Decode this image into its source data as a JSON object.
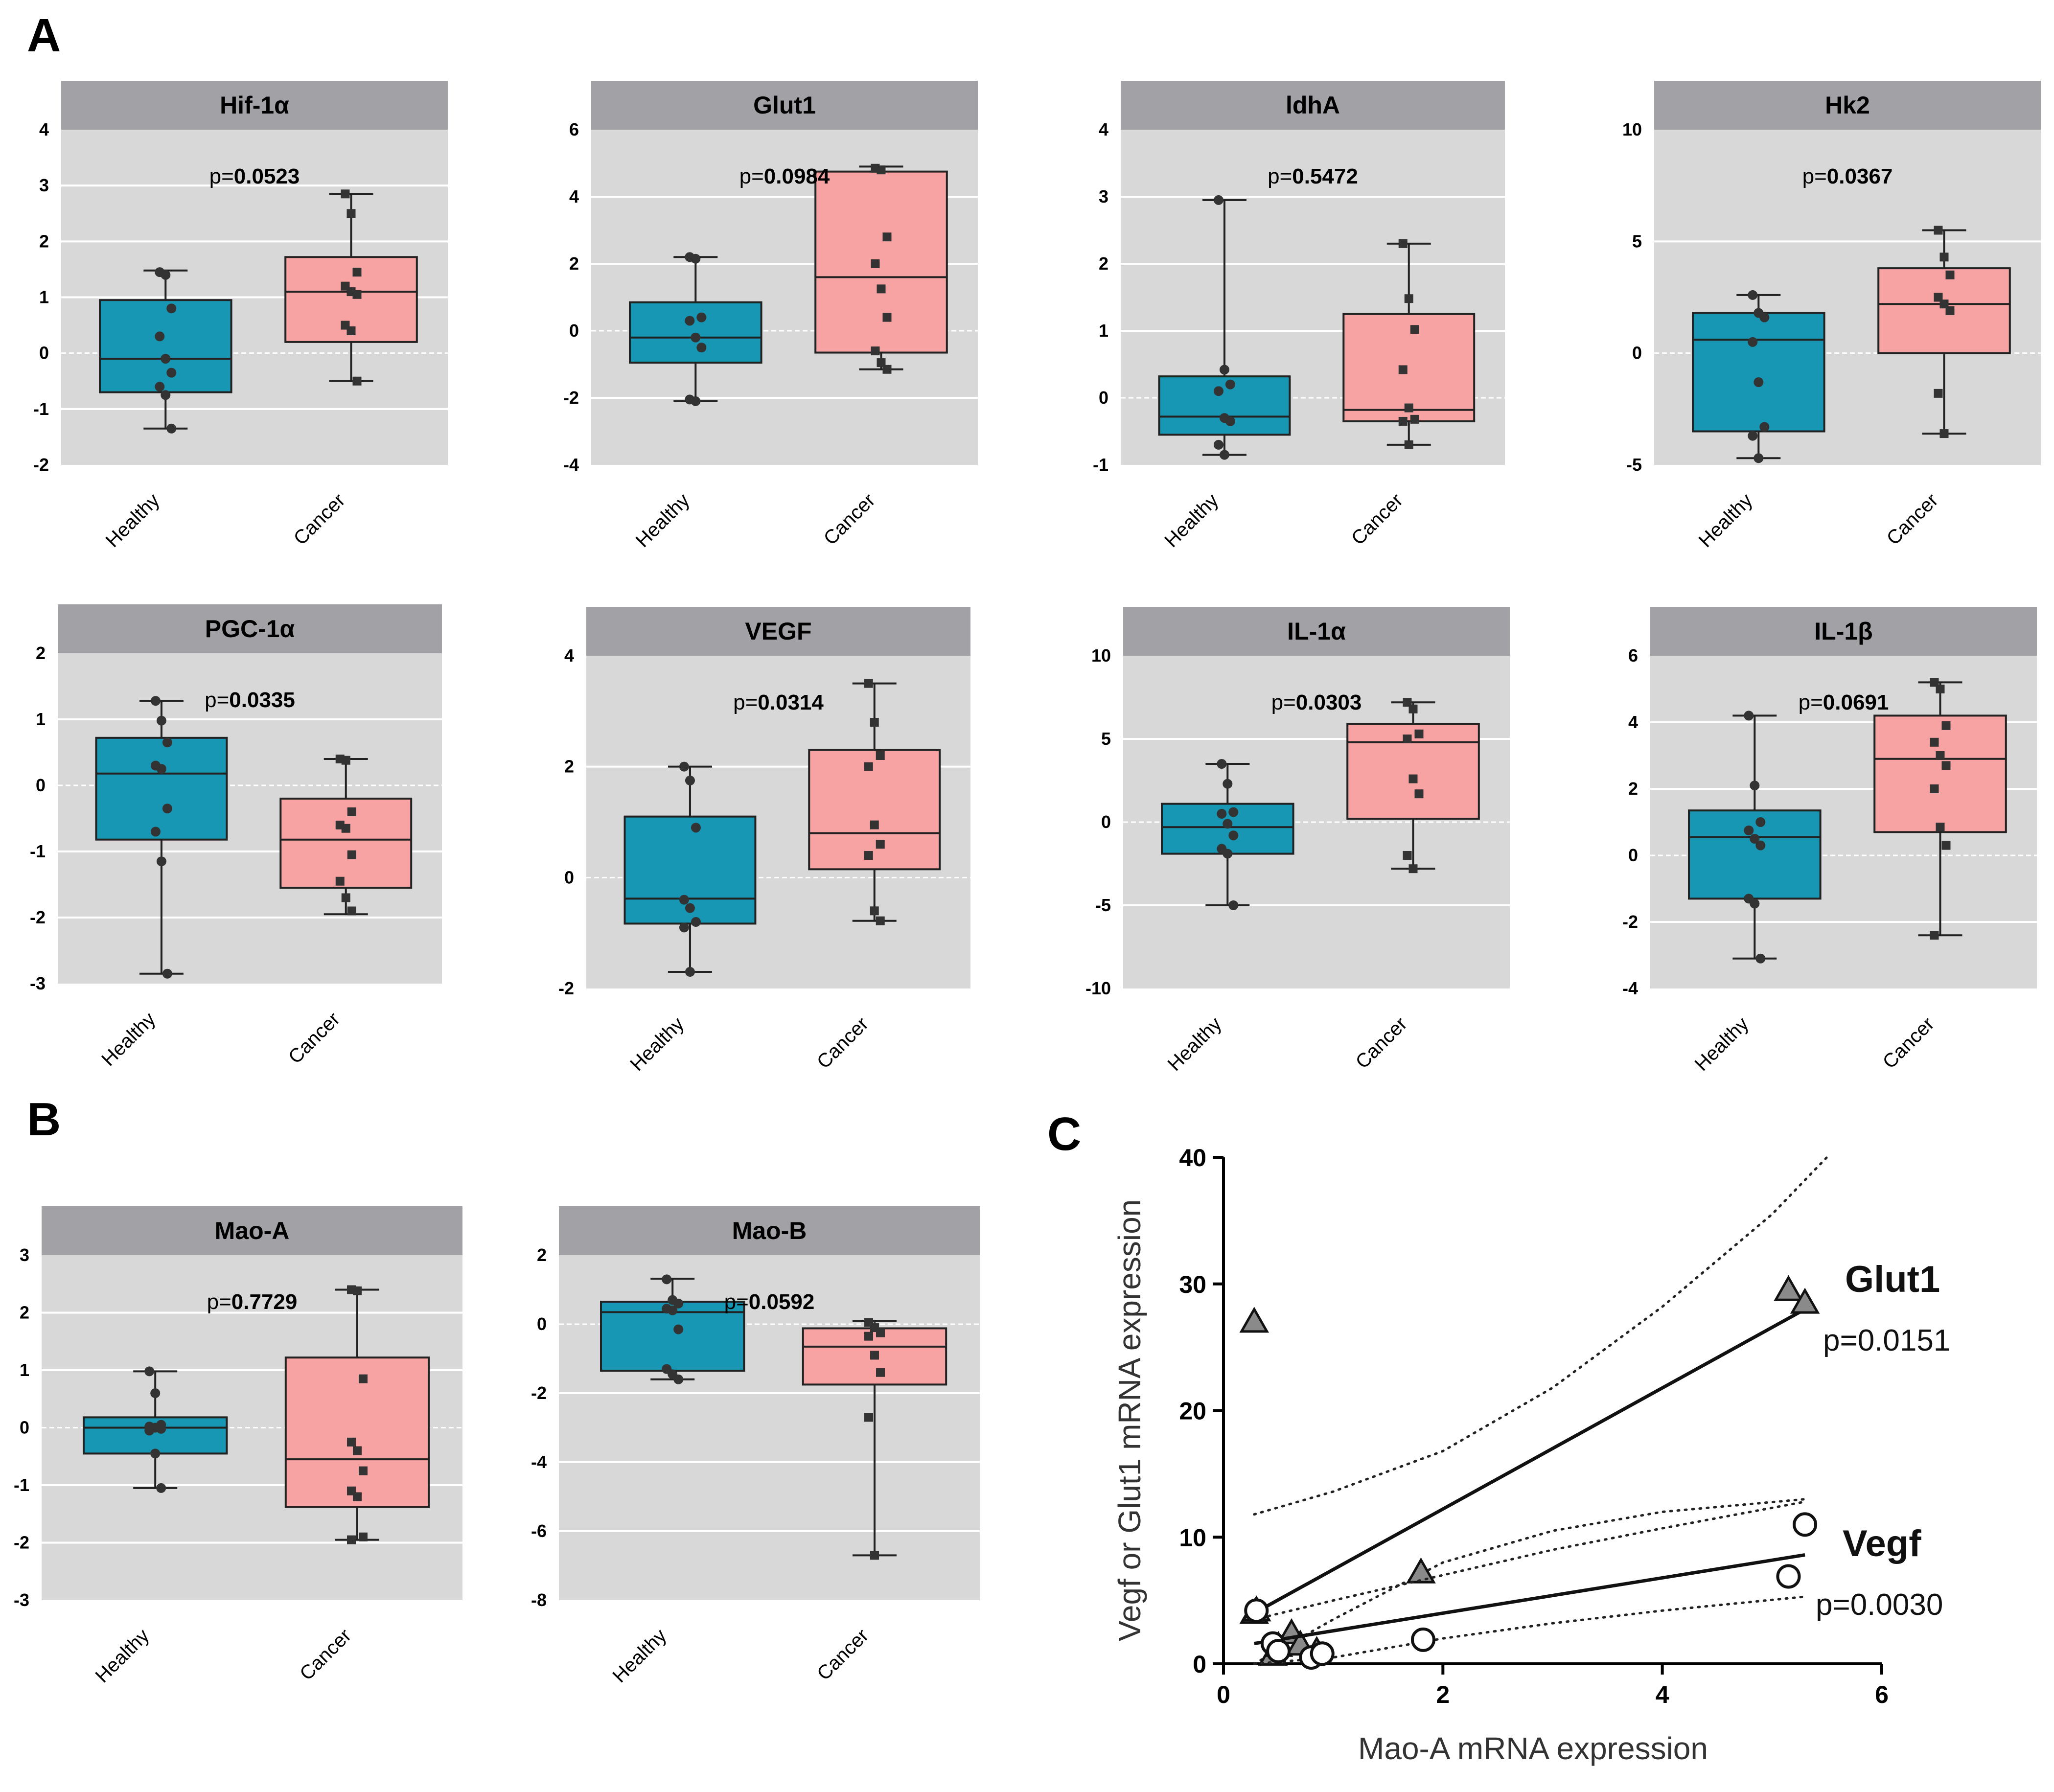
{
  "panel_labels": [
    "A",
    "B",
    "C"
  ],
  "colors": {
    "healthy": "#1797b4",
    "cancer": "#f7a3a4",
    "header": "#a2a1a6",
    "plot_bg": "#d8d8d8",
    "marker": "#333333"
  },
  "chart_data": [
    {
      "type": "box",
      "title": "Hif-1α",
      "p_prefix": "p=",
      "p_value": "0.0523",
      "categories": [
        "Healthy",
        "Cancer"
      ],
      "ylim": [
        -2,
        4
      ],
      "yticks": [
        "-2",
        "-1",
        "0",
        "1",
        "2",
        "3",
        "4"
      ],
      "healthy": {
        "min": -1.35,
        "q1": -0.7,
        "median": -0.1,
        "q3": 0.95,
        "max": 1.48,
        "points": [
          1.45,
          1.4,
          0.8,
          0.3,
          -0.1,
          -0.35,
          -0.6,
          -0.75,
          -1.35
        ]
      },
      "cancer": {
        "min": -0.5,
        "q1": 0.2,
        "median": 1.1,
        "q3": 1.72,
        "max": 2.85,
        "points": [
          2.85,
          2.5,
          1.45,
          1.2,
          1.1,
          1.05,
          0.5,
          0.4,
          -0.5
        ]
      }
    },
    {
      "type": "box",
      "title": "Glut1",
      "p_prefix": "p=",
      "p_value": "0.0984",
      "categories": [
        "Healthy",
        "Cancer"
      ],
      "ylim": [
        -4,
        6
      ],
      "yticks": [
        "-4",
        "-2",
        "0",
        "2",
        "4",
        "6"
      ],
      "healthy": {
        "min": -2.1,
        "q1": -0.95,
        "median": -0.2,
        "q3": 0.85,
        "max": 2.2,
        "points": [
          2.2,
          2.15,
          0.4,
          0.3,
          -0.2,
          -0.5,
          -2.05,
          -2.1
        ]
      },
      "cancer": {
        "min": -1.15,
        "q1": -0.65,
        "median": 1.6,
        "q3": 4.75,
        "max": 4.9,
        "points": [
          4.85,
          4.8,
          2.8,
          2.0,
          1.25,
          0.4,
          -0.6,
          -0.95,
          -1.15
        ]
      }
    },
    {
      "type": "box",
      "title": "ldhA",
      "p_prefix": "p=",
      "p_value": "0.5472",
      "categories": [
        "Healthy",
        "Cancer"
      ],
      "ylim": [
        -1,
        4
      ],
      "yticks": [
        "-1",
        "0",
        "1",
        "2",
        "3",
        "4"
      ],
      "healthy": {
        "min": -0.85,
        "q1": -0.55,
        "median": -0.28,
        "q3": 0.32,
        "max": 2.95,
        "points": [
          2.95,
          0.42,
          0.2,
          0.1,
          -0.3,
          -0.35,
          -0.7,
          -0.85
        ]
      },
      "cancer": {
        "min": -0.7,
        "q1": -0.35,
        "median": -0.18,
        "q3": 1.25,
        "max": 2.3,
        "points": [
          2.3,
          1.48,
          1.02,
          0.42,
          -0.15,
          -0.32,
          -0.35,
          -0.7
        ]
      }
    },
    {
      "type": "box",
      "title": "Hk2",
      "p_prefix": "p=",
      "p_value": "0.0367",
      "categories": [
        "Healthy",
        "Cancer"
      ],
      "ylim": [
        -5,
        10
      ],
      "yticks": [
        "-5",
        "0",
        "5",
        "10"
      ],
      "healthy": {
        "min": -4.7,
        "q1": -3.5,
        "median": 0.6,
        "q3": 1.8,
        "max": 2.6,
        "points": [
          2.6,
          1.8,
          1.6,
          0.5,
          -1.3,
          -3.3,
          -3.7,
          -4.7
        ]
      },
      "cancer": {
        "min": -3.6,
        "q1": 0.0,
        "median": 2.2,
        "q3": 3.8,
        "max": 5.5,
        "points": [
          5.5,
          4.3,
          3.5,
          2.5,
          2.2,
          1.9,
          -1.8,
          -3.6
        ]
      }
    },
    {
      "type": "box",
      "title": "PGC-1α",
      "p_prefix": "p=",
      "p_value": "0.0335",
      "categories": [
        "Healthy",
        "Cancer"
      ],
      "ylim": [
        -3,
        2
      ],
      "yticks": [
        "-3",
        "-2",
        "-1",
        "0",
        "1",
        "2"
      ],
      "healthy": {
        "min": -2.85,
        "q1": -0.82,
        "median": 0.18,
        "q3": 0.72,
        "max": 1.28,
        "points": [
          1.28,
          0.98,
          0.65,
          0.3,
          0.25,
          -0.35,
          -0.7,
          -1.15,
          -2.85
        ]
      },
      "cancer": {
        "min": -1.95,
        "q1": -1.55,
        "median": -0.82,
        "q3": -0.2,
        "max": 0.4,
        "points": [
          0.4,
          0.38,
          -0.4,
          -0.6,
          -0.65,
          -1.05,
          -1.45,
          -1.7,
          -1.9
        ]
      }
    },
    {
      "type": "box",
      "title": "VEGF",
      "p_prefix": "p=",
      "p_value": "0.0314",
      "categories": [
        "Healthy",
        "Cancer"
      ],
      "ylim": [
        -2,
        4
      ],
      "yticks": [
        "-2",
        "0",
        "2",
        "4"
      ],
      "healthy": {
        "min": -1.7,
        "q1": -0.83,
        "median": -0.38,
        "q3": 1.1,
        "max": 2.0,
        "points": [
          2.0,
          1.75,
          0.9,
          -0.4,
          -0.55,
          -0.8,
          -0.9,
          -1.7
        ]
      },
      "cancer": {
        "min": -0.78,
        "q1": 0.15,
        "median": 0.8,
        "q3": 2.3,
        "max": 3.5,
        "points": [
          3.5,
          2.8,
          2.2,
          2.0,
          0.95,
          0.6,
          0.4,
          -0.6,
          -0.78
        ]
      }
    },
    {
      "type": "box",
      "title": "IL-1α",
      "p_prefix": "p=",
      "p_value": "0.0303",
      "categories": [
        "Healthy",
        "Cancer"
      ],
      "ylim": [
        -10,
        10
      ],
      "yticks": [
        "-10",
        "-5",
        "0",
        "5",
        "10"
      ],
      "healthy": {
        "min": -5.0,
        "q1": -1.9,
        "median": -0.3,
        "q3": 1.1,
        "max": 3.5,
        "points": [
          3.5,
          2.3,
          0.6,
          0.5,
          -0.1,
          -0.8,
          -1.6,
          -1.9,
          -5.0
        ]
      },
      "cancer": {
        "min": -2.8,
        "q1": 0.2,
        "median": 4.8,
        "q3": 5.9,
        "max": 7.2,
        "points": [
          7.2,
          6.8,
          5.3,
          5.0,
          2.6,
          1.7,
          -2.0,
          -2.8
        ]
      }
    },
    {
      "type": "box",
      "title": "IL-1β",
      "p_prefix": "p=",
      "p_value": "0.0691",
      "categories": [
        "Healthy",
        "Cancer"
      ],
      "ylim": [
        -4,
        6
      ],
      "yticks": [
        "-4",
        "-2",
        "0",
        "2",
        "4",
        "6"
      ],
      "healthy": {
        "min": -3.1,
        "q1": -1.3,
        "median": 0.55,
        "q3": 1.35,
        "max": 4.2,
        "points": [
          4.2,
          2.1,
          1.0,
          0.75,
          0.5,
          0.3,
          -1.3,
          -1.45,
          -3.1
        ]
      },
      "cancer": {
        "min": -2.4,
        "q1": 0.7,
        "median": 2.9,
        "q3": 4.2,
        "max": 5.2,
        "points": [
          5.2,
          5.0,
          3.9,
          3.4,
          3.0,
          2.7,
          2.0,
          0.85,
          0.3,
          -2.4
        ]
      }
    },
    {
      "type": "box",
      "title": "Mao-A",
      "p_prefix": "p=",
      "p_value": "0.7729",
      "categories": [
        "Healthy",
        "Cancer"
      ],
      "ylim": [
        -3,
        3
      ],
      "yticks": [
        "-3",
        "-2",
        "-1",
        "0",
        "1",
        "2",
        "3"
      ],
      "healthy": {
        "min": -1.05,
        "q1": -0.45,
        "median": 0.0,
        "q3": 0.18,
        "max": 0.98,
        "points": [
          0.98,
          0.6,
          0.05,
          0.02,
          0.0,
          -0.02,
          -0.05,
          -0.45,
          -1.05
        ]
      },
      "cancer": {
        "min": -1.95,
        "q1": -1.38,
        "median": -0.55,
        "q3": 1.22,
        "max": 2.4,
        "points": [
          2.4,
          2.38,
          0.85,
          -0.25,
          -0.4,
          -0.75,
          -1.1,
          -1.2,
          -1.9,
          -1.95
        ]
      }
    },
    {
      "type": "box",
      "title": "Mao-B",
      "p_prefix": "p=",
      "p_value": "0.0592",
      "categories": [
        "Healthy",
        "Cancer"
      ],
      "ylim": [
        -8,
        2
      ],
      "yticks": [
        "-8",
        "-6",
        "-4",
        "-2",
        "0",
        "2"
      ],
      "healthy": {
        "min": -1.6,
        "q1": -1.35,
        "median": 0.35,
        "q3": 0.65,
        "max": 1.32,
        "points": [
          1.3,
          0.7,
          0.6,
          0.45,
          0.4,
          -0.15,
          -1.3,
          -1.45,
          -1.6
        ]
      },
      "cancer": {
        "min": -6.7,
        "q1": -1.75,
        "median": -0.65,
        "q3": -0.12,
        "max": 0.1,
        "points": [
          0.05,
          -0.1,
          -0.25,
          -0.35,
          -0.9,
          -1.4,
          -2.7,
          -6.7
        ]
      }
    },
    {
      "type": "scatter",
      "xlabel": "Mao-A mRNA expression",
      "ylabel": "Vegf or Glut1 mRNA expression",
      "xlim": [
        0,
        6
      ],
      "ylim": [
        0,
        40
      ],
      "xticks": [
        "0",
        "2",
        "4",
        "6"
      ],
      "yticks": [
        "0",
        "10",
        "20",
        "30",
        "40"
      ],
      "series": [
        {
          "name": "Glut1",
          "p_text": "p=0.0151",
          "marker": "triangle",
          "x": [
            0.28,
            0.28,
            0.3,
            0.45,
            0.5,
            0.62,
            0.7,
            0.85,
            1.8,
            5.15,
            5.3
          ],
          "y": [
            27.0,
            4.0,
            4.2,
            0.7,
            1.4,
            2.4,
            1.5,
            1.0,
            7.2,
            29.5,
            28.5
          ],
          "fit": [
            [
              0.28,
              4.0
            ],
            [
              5.3,
              28.0
            ]
          ],
          "band_upper": [
            [
              0.28,
              11.8
            ],
            [
              1.0,
              13.6
            ],
            [
              2.0,
              16.8
            ],
            [
              3.0,
              21.8
            ],
            [
              4.0,
              28.2
            ],
            [
              5.0,
              35.5
            ],
            [
              5.5,
              40.0
            ]
          ],
          "band_lower": [
            [
              0.28,
              -3.0
            ],
            [
              1.0,
              3.5
            ],
            [
              2.0,
              8.0
            ],
            [
              3.0,
              10.5
            ],
            [
              4.0,
              12.0
            ],
            [
              5.3,
              13.0
            ]
          ]
        },
        {
          "name": "Vegf",
          "p_text": "p=0.0030",
          "marker": "circle",
          "x": [
            0.3,
            0.45,
            0.5,
            0.8,
            0.9,
            1.82,
            5.15,
            5.3
          ],
          "y": [
            4.2,
            1.6,
            1.0,
            0.5,
            0.8,
            1.9,
            6.9,
            11.0
          ],
          "fit": [
            [
              0.28,
              1.6
            ],
            [
              5.3,
              8.6
            ]
          ],
          "band_upper": [
            [
              0.28,
              3.5
            ],
            [
              1.0,
              5.0
            ],
            [
              2.0,
              7.0
            ],
            [
              3.0,
              9.0
            ],
            [
              4.0,
              10.7
            ],
            [
              5.3,
              12.8
            ]
          ],
          "band_lower": [
            [
              0.28,
              -0.3
            ],
            [
              1.0,
              0.5
            ],
            [
              2.0,
              2.0
            ],
            [
              3.0,
              3.2
            ],
            [
              4.0,
              4.2
            ],
            [
              5.3,
              5.3
            ]
          ]
        }
      ]
    }
  ]
}
